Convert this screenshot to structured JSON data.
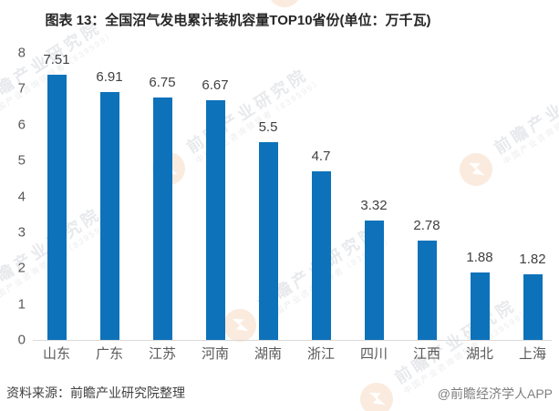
{
  "title": "图表 13：全国沼气发电累计装机容量TOP10省份(单位：万千瓦)",
  "source_note": "资料来源：前瞻产业研究院整理",
  "credit": "@前瞻经济学人APP",
  "watermark": {
    "main_text": "前瞻产业研究院",
    "sub_text": "中国产业咨询领导者（839599）",
    "logo_icon": "qianzhan-logo"
  },
  "colors": {
    "bar": "#0D72B9",
    "axis_line": "#D9D9D9",
    "title": "#262626",
    "value_label": "#404040",
    "tick_label": "#595959",
    "x_label": "#595959",
    "source": "#404040",
    "credit": "#7F7F7F"
  },
  "chart_data": {
    "type": "bar",
    "title": "图表 13：全国沼气发电累计装机容量TOP10省份(单位：万千瓦)",
    "categories": [
      "山东",
      "广东",
      "江苏",
      "河南",
      "湖南",
      "浙江",
      "四川",
      "江西",
      "湖北",
      "上海"
    ],
    "values": [
      7.51,
      6.91,
      6.75,
      6.67,
      5.5,
      4.7,
      3.32,
      2.78,
      1.88,
      1.82
    ],
    "value_labels": [
      "7.51",
      "6.91",
      "6.75",
      "6.67",
      "5.5",
      "4.7",
      "3.32",
      "2.78",
      "1.88",
      "1.82"
    ],
    "xlabel": "",
    "ylabel": "",
    "unit": "万千瓦",
    "ylim": [
      0,
      8
    ],
    "y_ticks": [
      0,
      1,
      2,
      3,
      4,
      5,
      6,
      7,
      8
    ],
    "grid": false,
    "legend_position": "none"
  }
}
